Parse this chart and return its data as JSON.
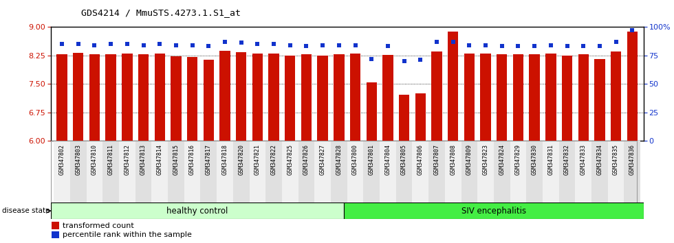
{
  "title": "GDS4214 / MmuSTS.4273.1.S1_at",
  "categories": [
    "GSM347802",
    "GSM347803",
    "GSM347810",
    "GSM347811",
    "GSM347812",
    "GSM347813",
    "GSM347814",
    "GSM347815",
    "GSM347816",
    "GSM347817",
    "GSM347818",
    "GSM347820",
    "GSM347821",
    "GSM347822",
    "GSM347825",
    "GSM347826",
    "GSM347827",
    "GSM347828",
    "GSM347800",
    "GSM347801",
    "GSM347804",
    "GSM347805",
    "GSM347806",
    "GSM347807",
    "GSM347808",
    "GSM347809",
    "GSM347823",
    "GSM347824",
    "GSM347829",
    "GSM347830",
    "GSM347831",
    "GSM347832",
    "GSM347833",
    "GSM347834",
    "GSM347835",
    "GSM347836"
  ],
  "bar_values": [
    8.28,
    8.31,
    8.27,
    8.28,
    8.29,
    8.28,
    8.3,
    8.22,
    8.2,
    8.13,
    8.37,
    8.33,
    8.3,
    8.3,
    8.25,
    8.27,
    8.25,
    8.28,
    8.3,
    7.53,
    8.26,
    7.21,
    7.25,
    8.35,
    8.87,
    8.3,
    8.3,
    8.28,
    8.28,
    8.27,
    8.3,
    8.25,
    8.27,
    8.16,
    8.35,
    8.88
  ],
  "percentile_values": [
    85,
    85,
    84,
    85,
    85,
    84,
    85,
    84,
    84,
    83,
    87,
    86,
    85,
    85,
    84,
    83,
    84,
    84,
    84,
    72,
    83,
    70,
    71,
    87,
    87,
    84,
    84,
    83,
    83,
    83,
    84,
    83,
    83,
    83,
    87,
    97
  ],
  "ylim_left": [
    6,
    9
  ],
  "ylim_right": [
    0,
    100
  ],
  "yticks_left": [
    6,
    6.75,
    7.5,
    8.25,
    9
  ],
  "yticks_right": [
    0,
    25,
    50,
    75,
    100
  ],
  "bar_color": "#cc1100",
  "percentile_color": "#1133cc",
  "healthy_label": "healthy control",
  "siv_label": "SIV encephalitis",
  "healthy_color": "#ccffcc",
  "siv_color": "#44ee44",
  "healthy_count": 18,
  "disease_state_label": "disease state",
  "legend_bar_label": "transformed count",
  "legend_pct_label": "percentile rank within the sample",
  "grid_dotted_vals": [
    6.75,
    7.5,
    8.25
  ]
}
